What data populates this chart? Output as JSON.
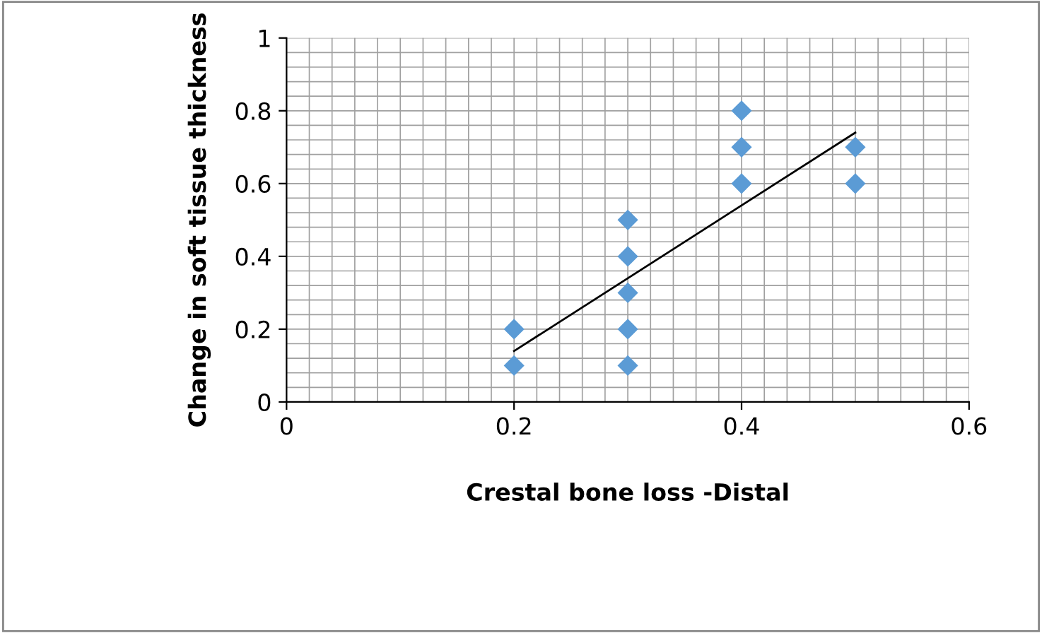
{
  "chart_data": {
    "type": "scatter",
    "xlabel": "Crestal bone loss -Distal",
    "ylabel": "Change in soft tissue thickness",
    "x": [
      0.2,
      0.2,
      0.3,
      0.3,
      0.3,
      0.3,
      0.3,
      0.4,
      0.4,
      0.4,
      0.5,
      0.5
    ],
    "series": [
      {
        "color": "#5b9bd5",
        "marker": "diamond",
        "values": [
          0.2,
          0.1,
          0.5,
          0.4,
          0.3,
          0.2,
          0.1,
          0.8,
          0.7,
          0.6,
          0.7,
          0.6
        ]
      },
      {
        "type": "line",
        "color": "#000000",
        "marker": "none",
        "x": [
          0.2,
          0.5
        ],
        "values": [
          0.14,
          0.74
        ]
      }
    ],
    "xlim": [
      0,
      0.6
    ],
    "ylim": [
      0,
      1
    ],
    "xticks": [
      0,
      0.2,
      0.4,
      0.6
    ],
    "yticks": [
      0,
      0.2,
      0.4,
      0.6,
      0.8,
      1
    ],
    "grid": true,
    "legend": false
  }
}
